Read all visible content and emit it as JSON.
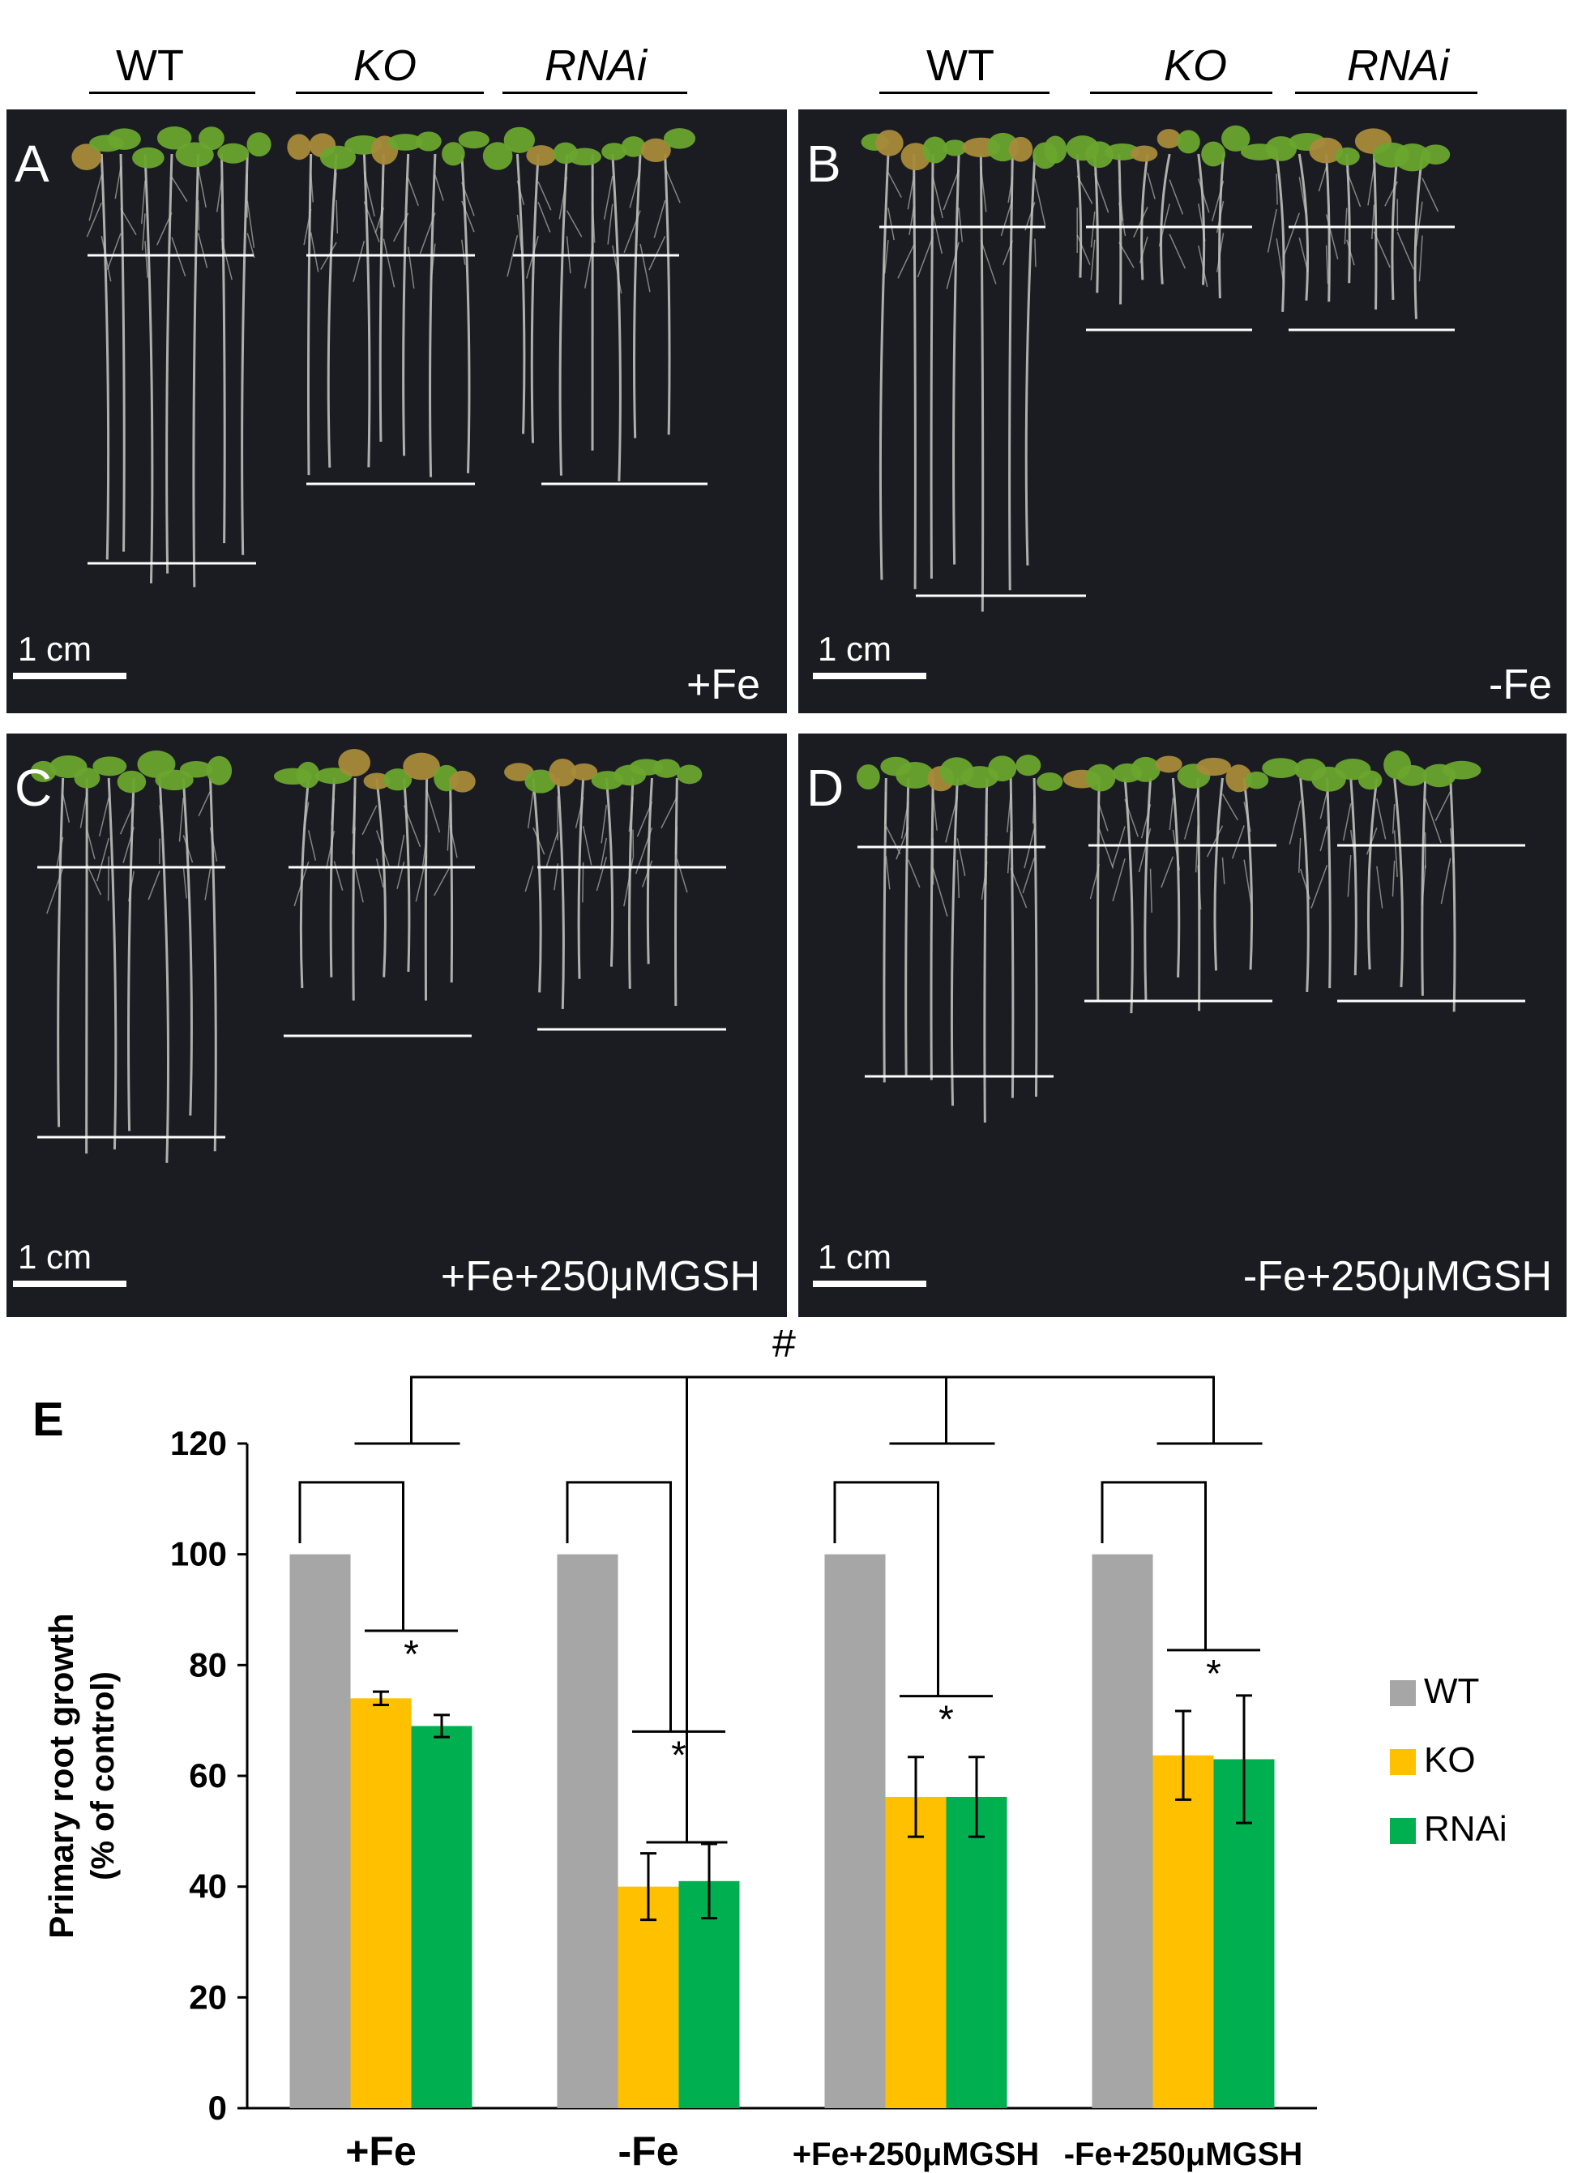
{
  "genotype_headers": {
    "left": [
      "WT",
      "KO",
      "RNAi"
    ],
    "right": [
      "WT",
      "KO",
      "RNAi"
    ]
  },
  "panels": [
    {
      "letter": "A",
      "condition": "+Fe",
      "scale": "1 cm"
    },
    {
      "letter": "B",
      "condition": "-Fe",
      "scale": "1 cm"
    },
    {
      "letter": "C",
      "condition": "+Fe+250μMGSH",
      "scale": "1 cm"
    },
    {
      "letter": "D",
      "condition": "-Fe+250μMGSH",
      "scale": "1 cm"
    }
  ],
  "colors": {
    "plate_background": "#1b1c22",
    "leaf_green": "#6aa52e",
    "root": "#c9c9c4",
    "WT": "#a6a6a6",
    "KO": "#ffc000",
    "RNAi": "#00b050"
  },
  "chart_data": {
    "panel_letter": "E",
    "type": "bar",
    "ylabel_line1": "Primary root growth",
    "ylabel_line2": "(% of control)",
    "xlabel": "",
    "title": "",
    "ylim": [
      0,
      120
    ],
    "yticks": [
      0,
      20,
      40,
      60,
      80,
      100,
      120
    ],
    "categories": [
      "+Fe",
      "-Fe",
      "+Fe+250μMGSH",
      "-Fe+250μMGSH"
    ],
    "series": [
      {
        "name": "WT",
        "color": "#a6a6a6",
        "values": [
          100,
          100,
          100,
          100
        ],
        "errors": [
          0,
          0,
          0,
          0
        ]
      },
      {
        "name": "KO",
        "color": "#ffc000",
        "values": [
          74,
          40,
          56.2,
          63.7
        ],
        "errors": [
          1.2,
          6,
          7.2,
          8
        ]
      },
      {
        "name": "RNAi",
        "color": "#00b050",
        "values": [
          69,
          41,
          56.2,
          63
        ],
        "errors": [
          2,
          6.7,
          7.2,
          11.5
        ]
      }
    ],
    "legend_position": "right",
    "significance_star": "*",
    "overall_mark": "#",
    "grid": false
  }
}
